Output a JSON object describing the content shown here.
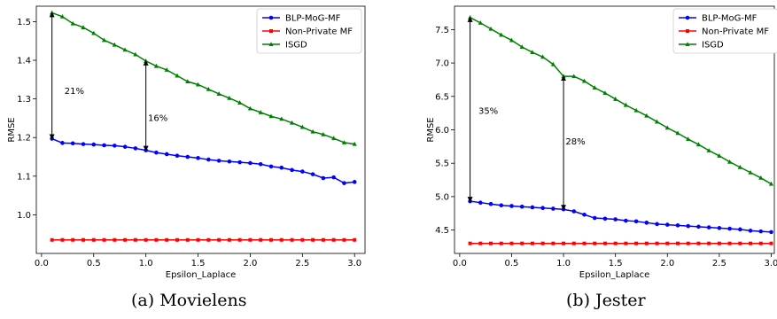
{
  "colors": {
    "blp": "#0000ff",
    "nonprivate": "#ff0000",
    "isgd": "#008000"
  },
  "chart_data": [
    {
      "type": "line",
      "caption": "(a) Movielens",
      "xlabel": "Epsilon_Laplace",
      "ylabel": "RMSE",
      "xlim": [
        -0.05,
        3.1
      ],
      "ylim": [
        0.9,
        1.54
      ],
      "xticks": [
        0.0,
        0.5,
        1.0,
        1.5,
        2.0,
        2.5,
        3.0
      ],
      "xtick_labels": [
        "0.0",
        "0.5",
        "1.0",
        "1.5",
        "2.0",
        "2.5",
        "3.0"
      ],
      "yticks": [
        1.0,
        1.1,
        1.2,
        1.3,
        1.4,
        1.5
      ],
      "ytick_labels": [
        "1.0",
        "1.1",
        "1.2",
        "1.3",
        "1.4",
        "1.5"
      ],
      "legend_position": "top-right",
      "x": [
        0.1,
        0.2,
        0.3,
        0.4,
        0.5,
        0.6,
        0.7,
        0.8,
        0.9,
        1.0,
        1.1,
        1.2,
        1.3,
        1.4,
        1.5,
        1.6,
        1.7,
        1.8,
        1.9,
        2.0,
        2.1,
        2.2,
        2.3,
        2.4,
        2.5,
        2.6,
        2.7,
        2.8,
        2.9,
        3.0
      ],
      "series": [
        {
          "name": "BLP-MoG-MF",
          "color_key": "blp",
          "marker": "circle",
          "values": [
            1.197,
            1.186,
            1.185,
            1.183,
            1.182,
            1.18,
            1.179,
            1.176,
            1.172,
            1.167,
            1.161,
            1.157,
            1.153,
            1.15,
            1.147,
            1.143,
            1.14,
            1.138,
            1.136,
            1.134,
            1.131,
            1.125,
            1.122,
            1.116,
            1.112,
            1.105,
            1.095,
            1.097,
            1.082,
            1.085
          ]
        },
        {
          "name": "Non-Private MF",
          "color_key": "nonprivate",
          "marker": "square",
          "values": [
            0.935,
            0.935,
            0.935,
            0.935,
            0.935,
            0.935,
            0.935,
            0.935,
            0.935,
            0.935,
            0.935,
            0.935,
            0.935,
            0.935,
            0.935,
            0.935,
            0.935,
            0.935,
            0.935,
            0.935,
            0.935,
            0.935,
            0.935,
            0.935,
            0.935,
            0.935,
            0.935,
            0.935,
            0.935,
            0.935
          ]
        },
        {
          "name": "ISGD",
          "color_key": "isgd",
          "marker": "triangle",
          "values": [
            1.523,
            1.513,
            1.495,
            1.485,
            1.47,
            1.452,
            1.44,
            1.427,
            1.415,
            1.398,
            1.385,
            1.375,
            1.36,
            1.345,
            1.337,
            1.325,
            1.313,
            1.302,
            1.29,
            1.275,
            1.265,
            1.255,
            1.248,
            1.238,
            1.227,
            1.215,
            1.208,
            1.198,
            1.187,
            1.183
          ]
        }
      ],
      "annotations": [
        {
          "text": "21%",
          "x": 0.1,
          "y_from": 1.197,
          "y_to": 1.523,
          "text_x": 0.22,
          "text_y": 1.32
        },
        {
          "text": "16%",
          "x": 1.0,
          "y_from": 1.167,
          "y_to": 1.398,
          "text_x": 1.02,
          "text_y": 1.25
        }
      ]
    },
    {
      "type": "line",
      "caption": "(b) Jester",
      "xlabel": "Epsilon_Laplace",
      "ylabel": "RMSE",
      "xlim": [
        -0.05,
        3.03
      ],
      "ylim": [
        4.15,
        7.85
      ],
      "xticks": [
        0.0,
        0.5,
        1.0,
        1.5,
        2.0,
        2.5,
        3.0
      ],
      "xtick_labels": [
        "0.0",
        "0.5",
        "1.0",
        "1.5",
        "2.0",
        "2.5",
        "3.0"
      ],
      "yticks": [
        4.5,
        5.0,
        5.5,
        6.0,
        6.5,
        7.0,
        7.5
      ],
      "ytick_labels": [
        "4.5",
        "5.0",
        "5.5",
        "6.0",
        "6.5",
        "7.0",
        "7.5"
      ],
      "legend_position": "top-right",
      "x": [
        0.1,
        0.2,
        0.3,
        0.4,
        0.5,
        0.6,
        0.7,
        0.8,
        0.9,
        1.0,
        1.1,
        1.2,
        1.3,
        1.4,
        1.5,
        1.6,
        1.7,
        1.8,
        1.9,
        2.0,
        2.1,
        2.2,
        2.3,
        2.4,
        2.5,
        2.6,
        2.7,
        2.8,
        2.9,
        3.0
      ],
      "series": [
        {
          "name": "BLP-MoG-MF",
          "color_key": "blp",
          "marker": "circle",
          "values": [
            4.93,
            4.91,
            4.89,
            4.87,
            4.86,
            4.85,
            4.84,
            4.83,
            4.82,
            4.81,
            4.78,
            4.73,
            4.68,
            4.67,
            4.66,
            4.64,
            4.63,
            4.61,
            4.59,
            4.58,
            4.57,
            4.56,
            4.55,
            4.54,
            4.53,
            4.52,
            4.51,
            4.49,
            4.48,
            4.47
          ]
        },
        {
          "name": "Non-Private MF",
          "color_key": "nonprivate",
          "marker": "square",
          "values": [
            4.3,
            4.3,
            4.3,
            4.3,
            4.3,
            4.3,
            4.3,
            4.3,
            4.3,
            4.3,
            4.3,
            4.3,
            4.3,
            4.3,
            4.3,
            4.3,
            4.3,
            4.3,
            4.3,
            4.3,
            4.3,
            4.3,
            4.3,
            4.3,
            4.3,
            4.3,
            4.3,
            4.3,
            4.3,
            4.3
          ]
        },
        {
          "name": "ISGD",
          "color_key": "isgd",
          "marker": "triangle",
          "values": [
            7.68,
            7.6,
            7.51,
            7.42,
            7.34,
            7.24,
            7.16,
            7.09,
            6.98,
            6.8,
            6.8,
            6.73,
            6.63,
            6.55,
            6.46,
            6.37,
            6.29,
            6.21,
            6.12,
            6.03,
            5.95,
            5.86,
            5.78,
            5.69,
            5.61,
            5.52,
            5.44,
            5.36,
            5.28,
            5.19
          ]
        }
      ],
      "annotations": [
        {
          "text": "35%",
          "x": 0.1,
          "y_from": 4.93,
          "y_to": 7.68,
          "text_x": 0.18,
          "text_y": 6.28
        },
        {
          "text": "28%",
          "x": 1.0,
          "y_from": 4.81,
          "y_to": 6.8,
          "text_x": 1.02,
          "text_y": 5.82
        }
      ]
    }
  ]
}
